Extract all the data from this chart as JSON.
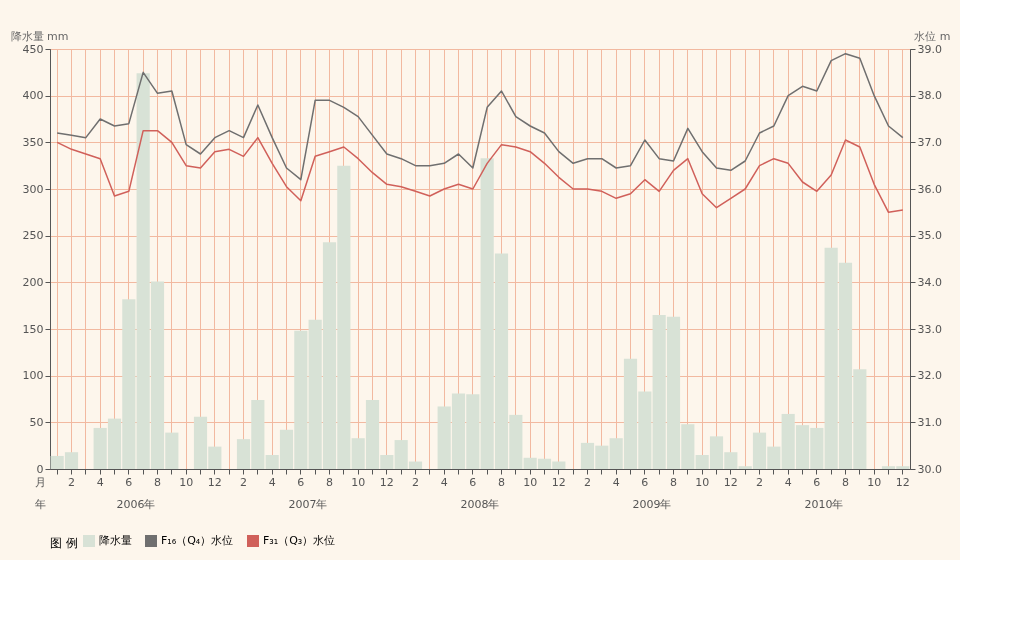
{
  "chart_data": {
    "type": "bar",
    "ylabel": "降水量 mm",
    "y2label": "水位 m",
    "legend_title": "图 例",
    "categories": [
      null,
      "2",
      null,
      "4",
      null,
      "6",
      null,
      "8",
      null,
      "10",
      null,
      "12",
      null,
      "2",
      null,
      "4",
      null,
      "6",
      null,
      "8",
      null,
      "10",
      null,
      "12",
      null,
      "2",
      null,
      "4",
      null,
      "6",
      null,
      "8",
      null,
      "10",
      null,
      "12",
      null,
      "2",
      null,
      "4",
      null,
      "6",
      null,
      "8",
      null,
      "10",
      null,
      "12",
      null,
      "2",
      null,
      "4",
      null,
      "6",
      null,
      "8",
      null,
      "10",
      null,
      "12"
    ],
    "series": [
      {
        "name": "降水量",
        "color": "#d8e2d6",
        "values": [
          14,
          18,
          0,
          44,
          54,
          182,
          424,
          201,
          39,
          0,
          56,
          24,
          0,
          32,
          74,
          15,
          42,
          148,
          160,
          243,
          325,
          33,
          74,
          15,
          31,
          8,
          0,
          67,
          81,
          80,
          333,
          231,
          58,
          12,
          11,
          8,
          0,
          28,
          25,
          33,
          118,
          83,
          165,
          163,
          48,
          15,
          35,
          18,
          3,
          39,
          24,
          59,
          47,
          44,
          237,
          221,
          107,
          0,
          3,
          3
        ]
      },
      {
        "name": "F₁₆（Q₄）水位",
        "type": "line",
        "axis": "y2",
        "color": "#6f6f6f",
        "values": [
          37.2,
          37.15,
          37.1,
          37.5,
          37.35,
          37.4,
          38.5,
          38.05,
          38.1,
          36.95,
          36.75,
          37.1,
          37.25,
          37.1,
          37.8,
          37.1,
          36.45,
          36.2,
          37.9,
          37.9,
          37.75,
          37.55,
          37.15,
          36.75,
          36.65,
          36.5,
          36.5,
          36.55,
          36.75,
          36.45,
          37.75,
          38.1,
          37.55,
          37.35,
          37.2,
          36.8,
          36.55,
          36.65,
          36.65,
          36.45,
          36.5,
          37.05,
          36.65,
          36.6,
          37.3,
          36.8,
          36.45,
          36.4,
          36.6,
          37.2,
          37.35,
          38.0,
          38.2,
          38.1,
          38.75,
          38.9,
          38.8,
          38.0,
          37.35,
          37.1
        ]
      },
      {
        "name": "F₃₁（Q₃）水位",
        "type": "line",
        "axis": "y2",
        "color": "#d0605a",
        "values": [
          37.0,
          36.85,
          36.75,
          36.65,
          35.85,
          35.95,
          37.25,
          37.25,
          37.0,
          36.5,
          36.45,
          36.8,
          36.85,
          36.7,
          37.1,
          36.55,
          36.05,
          35.75,
          36.7,
          36.8,
          36.9,
          36.65,
          36.35,
          36.1,
          36.05,
          35.95,
          35.85,
          36.0,
          36.1,
          36.0,
          36.55,
          36.95,
          36.9,
          36.8,
          36.55,
          36.25,
          36.0,
          36.0,
          35.95,
          35.8,
          35.9,
          36.2,
          35.95,
          36.4,
          36.65,
          35.9,
          35.6,
          35.8,
          36.0,
          36.5,
          36.65,
          36.55,
          36.15,
          35.95,
          36.3,
          37.05,
          36.9,
          36.1,
          35.5,
          35.55
        ]
      }
    ],
    "ylim": [
      0,
      450
    ],
    "yticks": [
      0,
      50,
      100,
      150,
      200,
      250,
      300,
      350,
      400,
      450
    ],
    "y2lim": [
      30,
      39
    ],
    "y2ticks": [
      {
        "value": 30,
        "label": "30.0"
      },
      {
        "value": 31,
        "label": "31.0"
      },
      {
        "value": 32,
        "label": "32.0"
      },
      {
        "value": 33,
        "label": "33.0"
      },
      {
        "value": 34,
        "label": "34.0"
      },
      {
        "value": 35,
        "label": "35.0"
      },
      {
        "value": 36,
        "label": "36.0"
      },
      {
        "value": 37,
        "label": "37.0"
      },
      {
        "value": 38,
        "label": "38.0"
      },
      {
        "value": 39,
        "label": "39.0"
      }
    ],
    "annotations": [
      "月",
      "年",
      "2006年",
      "2007年",
      "2008年",
      "2009年",
      "2010年"
    ],
    "grid": true,
    "legend": "bottom",
    "marker": "none",
    "line_style": "solid"
  }
}
